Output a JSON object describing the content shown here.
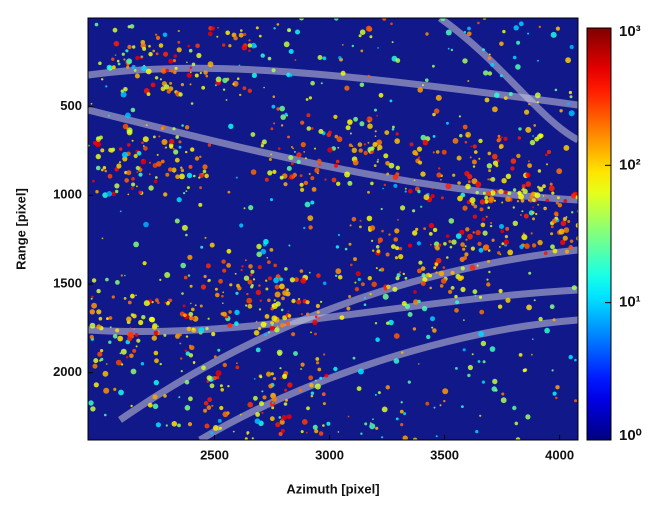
{
  "chart_data": {
    "type": "heatmap",
    "x_label": "Azimuth [pixel]",
    "y_label": "Range [pixel]",
    "xlim": [
      1950,
      4080
    ],
    "xticks": [
      2500,
      3000,
      3500,
      4000
    ],
    "ylim": [
      0,
      2380
    ],
    "y_inverted": true,
    "yticks": [
      500,
      1000,
      1500,
      2000
    ],
    "colormap": "jet",
    "color_scale": "log",
    "clim": [
      1,
      1000
    ],
    "cticks": [
      {
        "value": 1,
        "label": "10⁰"
      },
      {
        "value": 10,
        "label": "10¹"
      },
      {
        "value": 100,
        "label": "10²"
      },
      {
        "value": 1000,
        "label": "10³"
      }
    ]
  }
}
